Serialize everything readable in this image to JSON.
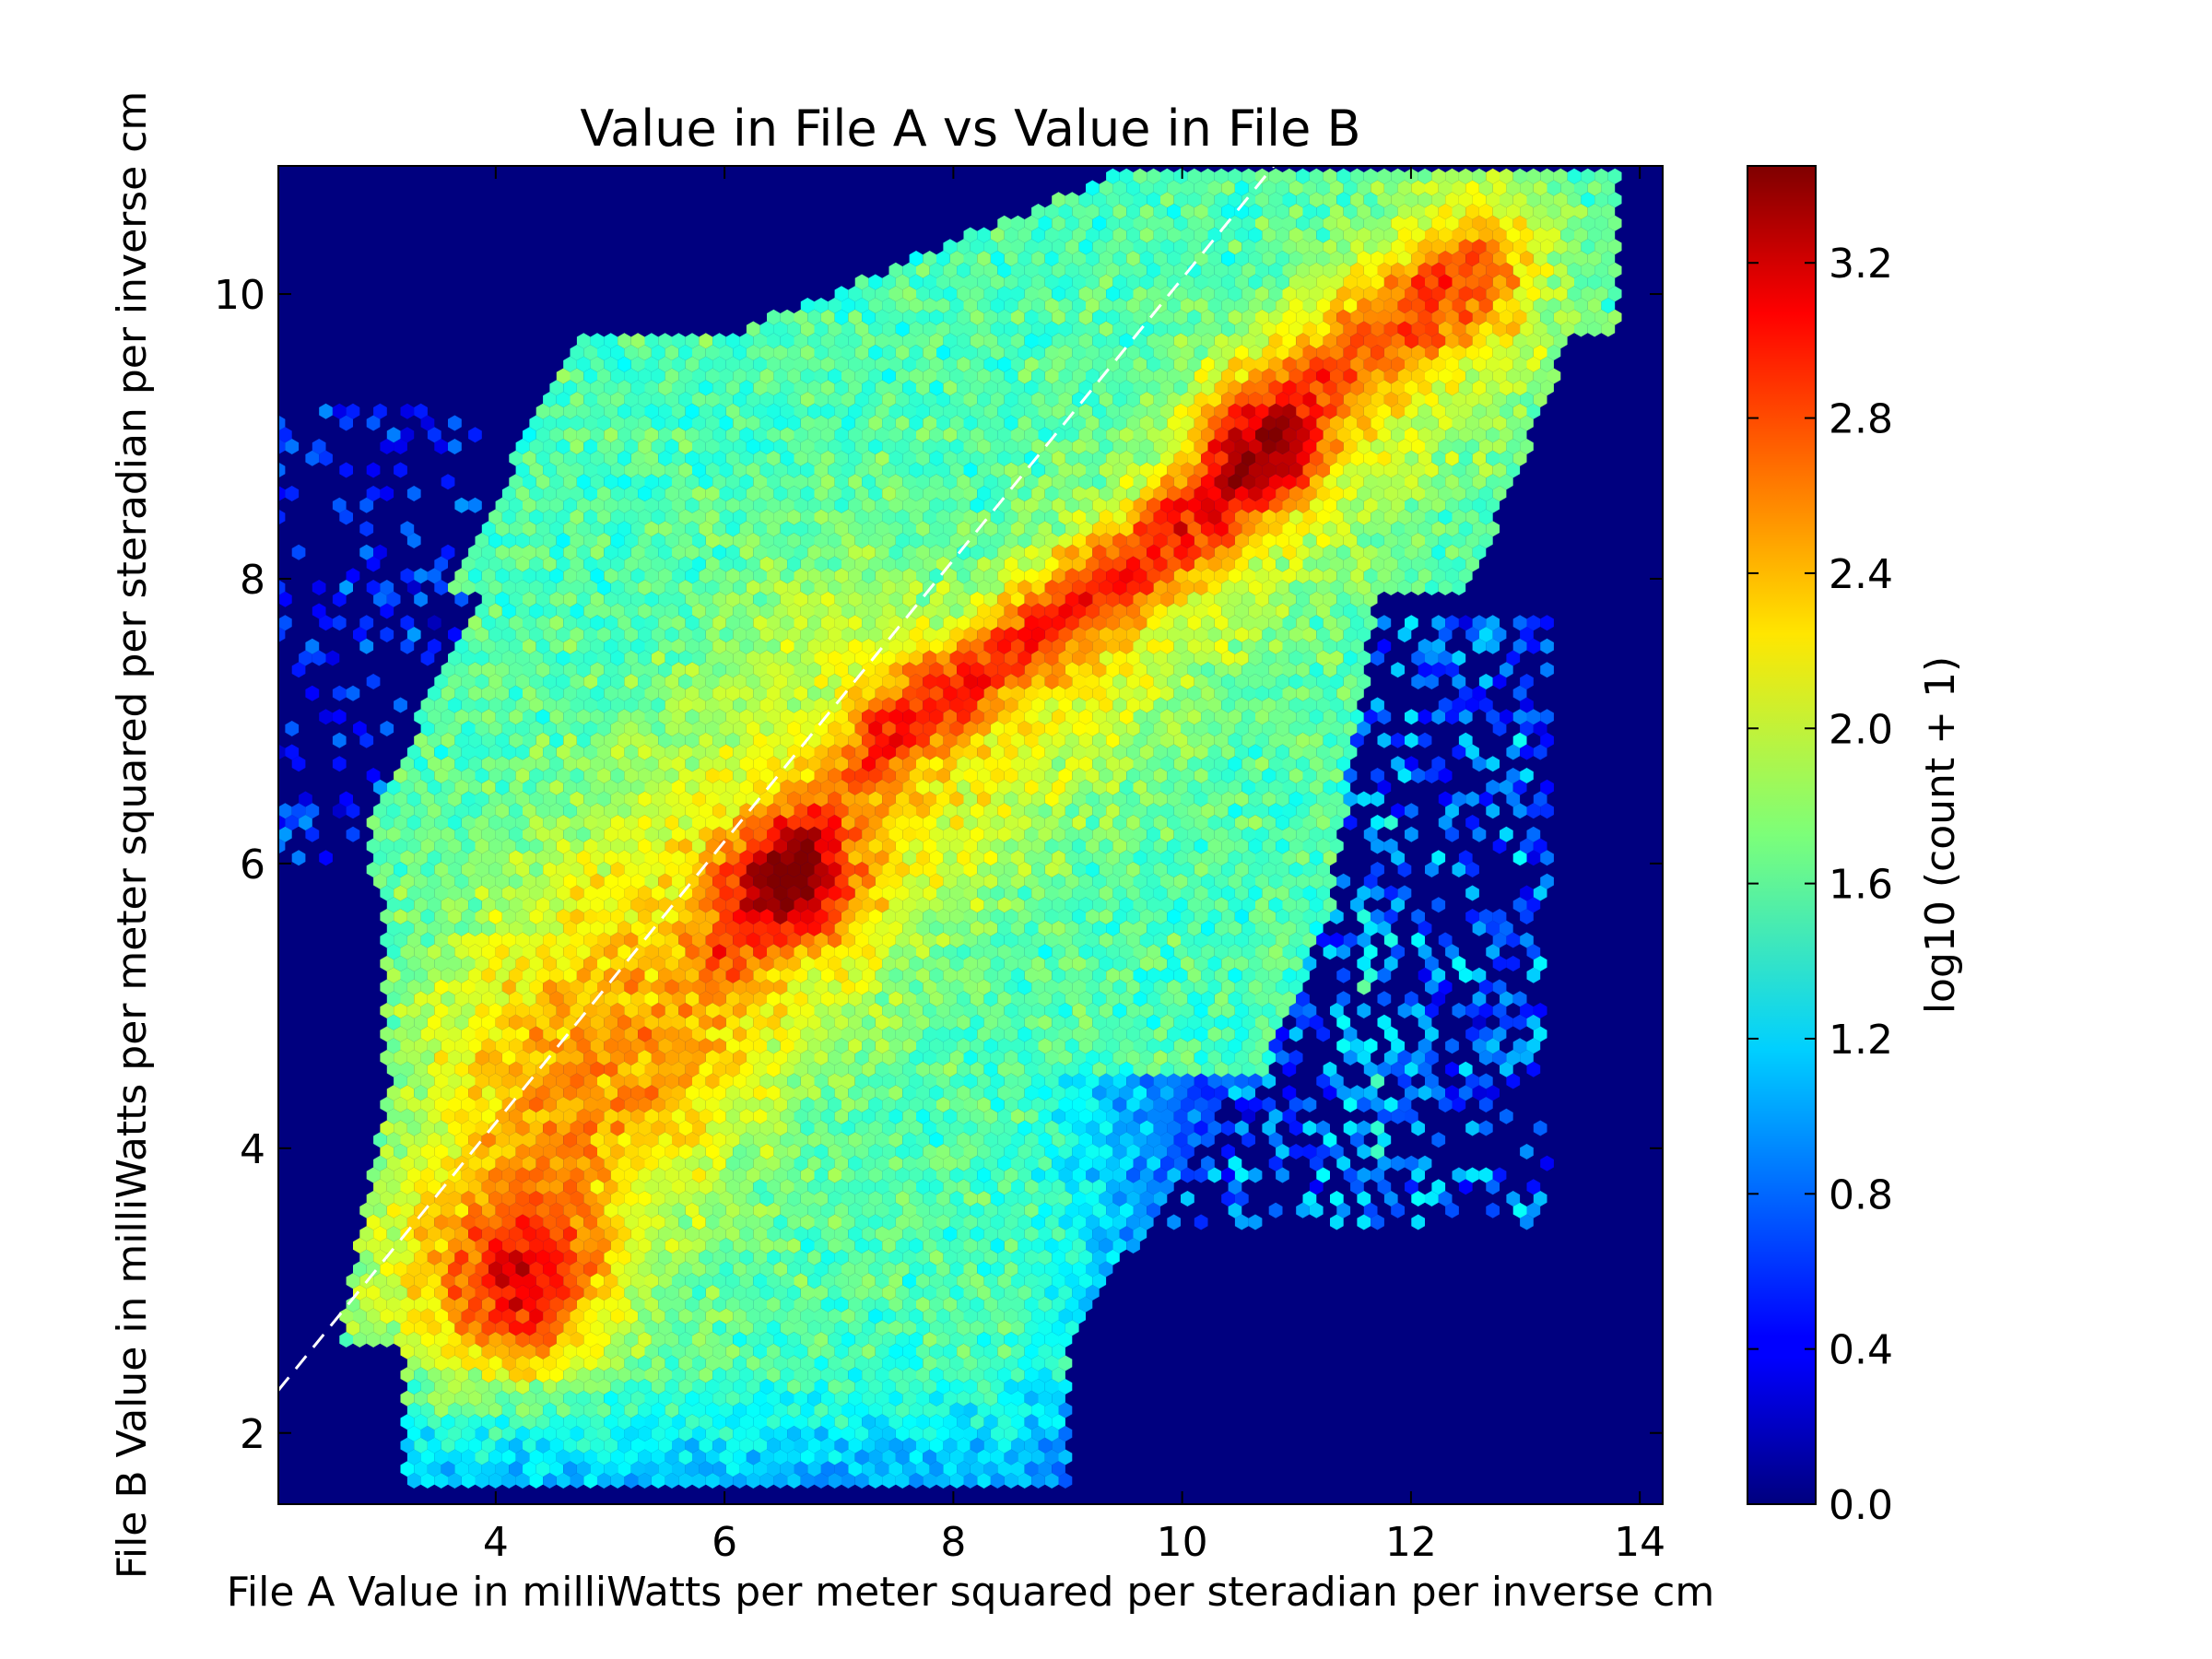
{
  "chart_data": {
    "type": "heatmap",
    "subtype": "hexbin",
    "title": "Value in File A vs Value in File B",
    "xlabel": "File A Value in milliWatts per meter squared per steradian per inverse cm",
    "ylabel": "File B Value in milliWatts per meter squared per steradian per inverse cm",
    "xlim": [
      2.1,
      14.2
    ],
    "ylim": [
      1.5,
      10.9
    ],
    "xticks": [
      4,
      6,
      8,
      10,
      12,
      14
    ],
    "yticks": [
      2,
      4,
      6,
      8,
      10
    ],
    "colorbar": {
      "label": "log10 (count + 1)",
      "range": [
        0.0,
        3.45
      ],
      "ticks": [
        0.0,
        0.4,
        0.8,
        1.2,
        1.6,
        2.0,
        2.4,
        2.8,
        3.2
      ],
      "colormap": "jet"
    },
    "background_color": "#00007f",
    "reference_line": {
      "style": "dashed",
      "color": "#ffffff",
      "x": [
        2.1,
        10.8
      ],
      "y": [
        2.3,
        10.9
      ]
    },
    "density_ridges": [
      {
        "x": 4.3,
        "y": 3.0,
        "value": 3.0
      },
      {
        "x": 6.6,
        "y": 5.9,
        "value": 3.2
      },
      {
        "x": 7.8,
        "y": 7.3,
        "value": 2.9
      },
      {
        "x": 10.2,
        "y": 8.6,
        "value": 3.3
      },
      {
        "x": 12.0,
        "y": 9.8,
        "value": 2.9
      }
    ],
    "grid": false
  }
}
